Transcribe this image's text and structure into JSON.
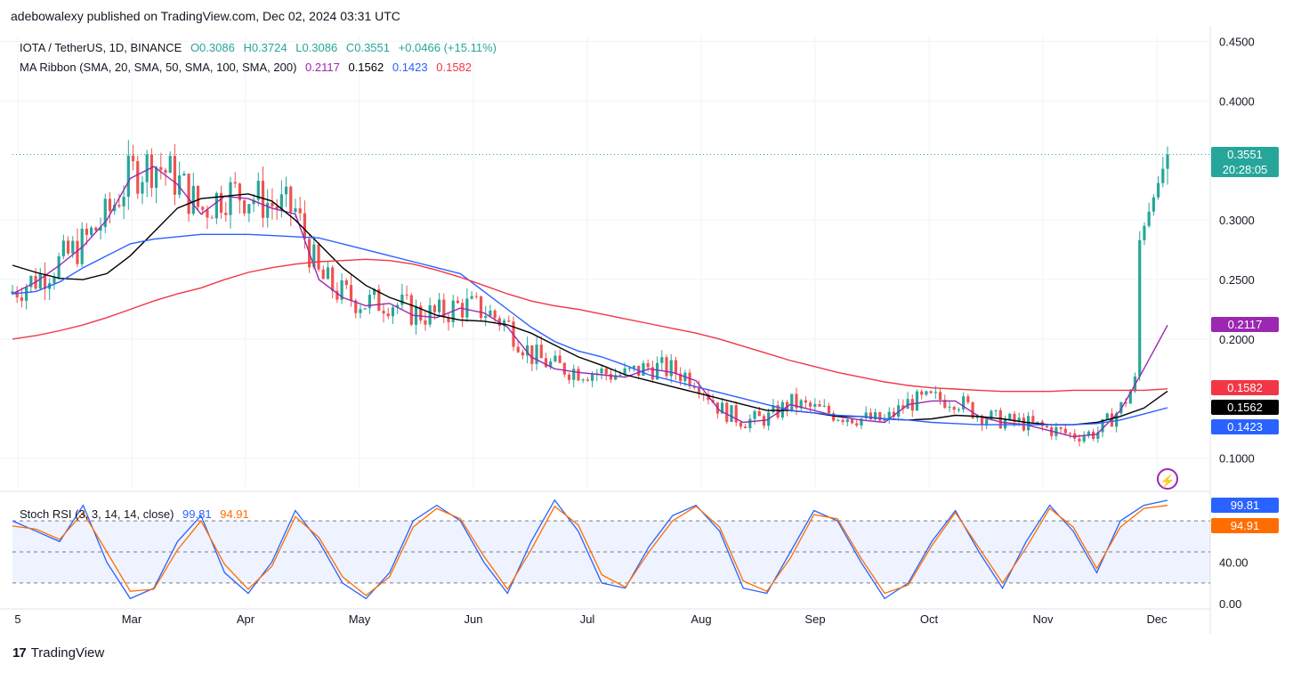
{
  "header": {
    "text": "adebowalexy published on TradingView.com, Dec 02, 2024 03:31 UTC"
  },
  "brand": {
    "name": "TradingView"
  },
  "legend_price": {
    "symbol": "IOTA / TetherUS, 1D, BINANCE",
    "open": "O0.3086",
    "high": "H0.3724",
    "low": "L0.3086",
    "close": "C0.3551",
    "change": "+0.0466 (+15.11%)"
  },
  "legend_ma": {
    "label": "MA Ribbon (SMA, 20, SMA, 50, SMA, 100, SMA, 200)",
    "v20": "0.2117",
    "v50": "0.1562",
    "v100": "0.1423",
    "v200": "0.1582"
  },
  "legend_rsi": {
    "label": "Stoch RSI (3, 3, 14, 14, close)",
    "k": "99.81",
    "d": "94.91"
  },
  "tags": {
    "price": "0.3551",
    "countdown": "20:28:05",
    "ma20": "0.2117",
    "ma200": "0.1582",
    "ma50": "0.1562",
    "ma100": "0.1423",
    "rsi_k": "99.81",
    "rsi_d": "94.91"
  },
  "colors": {
    "up": "#26a69a",
    "down": "#ef5350",
    "ma20": "#9c27b0",
    "ma50": "#000000",
    "ma100": "#2962ff",
    "ma200": "#f23645",
    "rsi_k": "#2962ff",
    "rsi_d": "#ff6d00"
  },
  "chart_data": [
    {
      "type": "candlestick",
      "title": "IOTA / TetherUS, 1D, BINANCE",
      "y_ticks": [
        "0.4500",
        "0.4000",
        "0.3000",
        "0.2500",
        "0.2000",
        "0.1000"
      ],
      "ylim": [
        0.075,
        0.455
      ],
      "x_ticks": [
        "5",
        "Mar",
        "Apr",
        "May",
        "Jun",
        "Jul",
        "Aug",
        "Sep",
        "Oct",
        "Nov",
        "Dec"
      ],
      "last_price": 0.3551,
      "series": [
        {
          "name": "SMA 20",
          "color": "#9c27b0",
          "last": 0.2117,
          "values": [
            0.238,
            0.248,
            0.262,
            0.278,
            0.3,
            0.335,
            0.345,
            0.33,
            0.305,
            0.32,
            0.318,
            0.31,
            0.305,
            0.25,
            0.235,
            0.228,
            0.23,
            0.22,
            0.218,
            0.226,
            0.222,
            0.21,
            0.185,
            0.175,
            0.172,
            0.17,
            0.168,
            0.175,
            0.172,
            0.165,
            0.14,
            0.13,
            0.132,
            0.145,
            0.14,
            0.135,
            0.132,
            0.13,
            0.145,
            0.148,
            0.148,
            0.135,
            0.13,
            0.128,
            0.123,
            0.118,
            0.12,
            0.14,
            0.175,
            0.2117
          ]
        },
        {
          "name": "SMA 50",
          "color": "#000000",
          "last": 0.1562,
          "values": [
            0.262,
            0.256,
            0.251,
            0.25,
            0.255,
            0.27,
            0.29,
            0.31,
            0.318,
            0.32,
            0.322,
            0.316,
            0.3,
            0.28,
            0.26,
            0.245,
            0.235,
            0.228,
            0.22,
            0.216,
            0.215,
            0.212,
            0.205,
            0.195,
            0.185,
            0.178,
            0.17,
            0.165,
            0.16,
            0.155,
            0.15,
            0.145,
            0.14,
            0.14,
            0.138,
            0.135,
            0.135,
            0.133,
            0.132,
            0.133,
            0.136,
            0.135,
            0.133,
            0.13,
            0.128,
            0.128,
            0.13,
            0.135,
            0.142,
            0.1562
          ]
        },
        {
          "name": "SMA 100",
          "color": "#2962ff",
          "last": 0.1423,
          "values": [
            0.238,
            0.24,
            0.248,
            0.26,
            0.27,
            0.28,
            0.284,
            0.286,
            0.288,
            0.288,
            0.288,
            0.287,
            0.286,
            0.285,
            0.28,
            0.275,
            0.27,
            0.265,
            0.26,
            0.255,
            0.24,
            0.225,
            0.21,
            0.198,
            0.19,
            0.185,
            0.178,
            0.17,
            0.165,
            0.16,
            0.155,
            0.15,
            0.145,
            0.14,
            0.138,
            0.136,
            0.135,
            0.133,
            0.132,
            0.13,
            0.129,
            0.128,
            0.128,
            0.128,
            0.128,
            0.128,
            0.129,
            0.132,
            0.137,
            0.1423
          ]
        },
        {
          "name": "SMA 200",
          "color": "#f23645",
          "last": 0.1582,
          "values": [
            0.2,
            0.203,
            0.207,
            0.212,
            0.218,
            0.225,
            0.232,
            0.238,
            0.243,
            0.25,
            0.256,
            0.26,
            0.263,
            0.265,
            0.266,
            0.267,
            0.266,
            0.263,
            0.258,
            0.252,
            0.245,
            0.238,
            0.232,
            0.228,
            0.225,
            0.221,
            0.217,
            0.213,
            0.209,
            0.205,
            0.2,
            0.194,
            0.188,
            0.182,
            0.177,
            0.172,
            0.168,
            0.164,
            0.161,
            0.159,
            0.158,
            0.157,
            0.156,
            0.156,
            0.156,
            0.157,
            0.157,
            0.157,
            0.157,
            0.1582
          ]
        }
      ]
    },
    {
      "type": "line",
      "title": "Stoch RSI (3, 3, 14, 14, close)",
      "y_ticks": [
        "40.00",
        "0.00"
      ],
      "ylim": [
        -5,
        105
      ],
      "bands": [
        20,
        50,
        80
      ],
      "series": [
        {
          "name": "K",
          "color": "#2962ff",
          "last": 99.81,
          "values": [
            80,
            70,
            60,
            95,
            40,
            5,
            15,
            60,
            85,
            30,
            10,
            40,
            90,
            60,
            20,
            5,
            30,
            80,
            95,
            80,
            40,
            10,
            60,
            100,
            70,
            20,
            15,
            55,
            85,
            95,
            70,
            15,
            10,
            50,
            90,
            80,
            40,
            5,
            20,
            60,
            90,
            50,
            15,
            60,
            95,
            70,
            30,
            80,
            95,
            99.81
          ]
        },
        {
          "name": "D",
          "color": "#ff6d00",
          "last": 94.91,
          "values": [
            75,
            72,
            62,
            88,
            50,
            12,
            14,
            52,
            80,
            38,
            14,
            36,
            84,
            64,
            26,
            8,
            26,
            74,
            92,
            82,
            46,
            14,
            52,
            94,
            76,
            28,
            16,
            50,
            80,
            94,
            74,
            22,
            12,
            44,
            86,
            82,
            44,
            10,
            18,
            56,
            88,
            54,
            20,
            54,
            92,
            74,
            34,
            74,
            92,
            94.91
          ]
        }
      ]
    }
  ]
}
